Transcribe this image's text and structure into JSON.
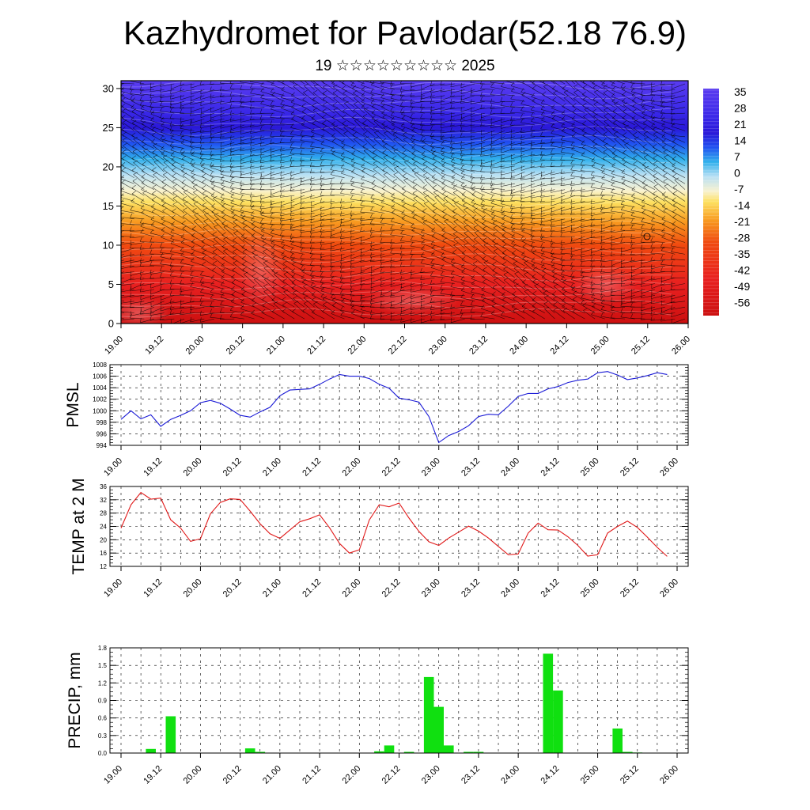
{
  "header": {
    "title": "Kazhydromet for Pavlodar(52.18 76.9)",
    "subtitle": "19 ☆☆☆☆☆☆☆☆☆ 2025"
  },
  "chart_data": [
    {
      "type": "heatmap",
      "name": "vertical-temperature-wind-section",
      "x_tick_labels": [
        "19.00",
        "19.12",
        "20.00",
        "20.12",
        "21.00",
        "21.12",
        "22.00",
        "22.12",
        "23.00",
        "23.12",
        "24.00",
        "24.12",
        "25.00",
        "25.12",
        "26.00"
      ],
      "y_ticks": [
        0,
        5,
        10,
        15,
        20,
        25,
        30
      ],
      "ylim": [
        0,
        31
      ],
      "colorbar_labels": [
        "35",
        "28",
        "21",
        "14",
        "7",
        "0",
        "-7",
        "-14",
        "-21",
        "-28",
        "-35",
        "-42",
        "-49",
        "-56"
      ],
      "colormap": {
        "stops": [
          {
            "level": 0,
            "color": "#cc1010"
          },
          {
            "level": 5,
            "color": "#e82020"
          },
          {
            "level": 10,
            "color": "#f04a10"
          },
          {
            "level": 13,
            "color": "#f89a20"
          },
          {
            "level": 15.5,
            "color": "#fde060"
          },
          {
            "level": 17,
            "color": "#f8f2d0"
          },
          {
            "level": 19,
            "color": "#b8e0f4"
          },
          {
            "level": 21,
            "color": "#30b0ec"
          },
          {
            "level": 23,
            "color": "#2050f0"
          },
          {
            "level": 25,
            "color": "#2a18d8"
          },
          {
            "level": 27,
            "color": "#3a28e8"
          },
          {
            "level": 31,
            "color": "#5a3cf0"
          }
        ]
      },
      "annotation_overlay": "wind barbs"
    },
    {
      "type": "line",
      "ylabel": "PMSL",
      "x_tick_labels": [
        "19.00",
        "19.12",
        "20.00",
        "20.12",
        "21.00",
        "21.12",
        "22.00",
        "22.12",
        "23.00",
        "23.12",
        "24.00",
        "24.12",
        "25.00",
        "25.12",
        "26.00"
      ],
      "y_ticks": [
        994,
        996,
        998,
        1000,
        1002,
        1004,
        1006,
        1008
      ],
      "ylim": [
        994,
        1008
      ],
      "x_range_hours": [
        0,
        168
      ],
      "line_color": "#1a1ad6",
      "grid": true,
      "series": [
        {
          "x": [
            0,
            3,
            6,
            9,
            12,
            15,
            18,
            21,
            24,
            27,
            30,
            33,
            36,
            39,
            42,
            45,
            48,
            51,
            54,
            57,
            60,
            63,
            66,
            69,
            72,
            75,
            78,
            81,
            84,
            87,
            90,
            93,
            96,
            99,
            102,
            105,
            108,
            111,
            114,
            117,
            120,
            123,
            126,
            129,
            132,
            135,
            138,
            141,
            144,
            147,
            150,
            153,
            156,
            159,
            162,
            165
          ],
          "values": [
            998.5,
            1000,
            998.6,
            999.3,
            997.3,
            998.5,
            999.2,
            1000,
            1001.4,
            1001.8,
            1001.3,
            1000.3,
            999.2,
            998.9,
            999.8,
            1000.6,
            1002.6,
            1003.6,
            1003.7,
            1003.8,
            1004.6,
            1005.5,
            1006.3,
            1006,
            1006,
            1005.6,
            1004.6,
            1003.9,
            1002.2,
            1001.9,
            1001.5,
            999,
            994.5,
            995.7,
            996.4,
            997.4,
            999,
            999.4,
            999.3,
            1000.8,
            1002.5,
            1003,
            1003,
            1003.8,
            1004.2,
            1004.9,
            1005.3,
            1005.5,
            1006.6,
            1006.8,
            1006.2,
            1005.4,
            1005.7,
            1006.1,
            1006.6,
            1006.3
          ]
        }
      ]
    },
    {
      "type": "line",
      "ylabel": "TEMP at 2 M",
      "x_tick_labels": [
        "19.00",
        "19.12",
        "20.00",
        "20.12",
        "21.00",
        "21.12",
        "22.00",
        "22.12",
        "23.00",
        "23.12",
        "24.00",
        "24.12",
        "25.00",
        "25.12",
        "26.00"
      ],
      "y_ticks": [
        12,
        16,
        20,
        24,
        28,
        32,
        36
      ],
      "ylim": [
        12,
        36
      ],
      "x_range_hours": [
        0,
        168
      ],
      "line_color": "#e01818",
      "grid": true,
      "series": [
        {
          "x": [
            0,
            3,
            6,
            9,
            12,
            15,
            18,
            21,
            24,
            27,
            30,
            33,
            36,
            39,
            42,
            45,
            48,
            51,
            54,
            57,
            60,
            63,
            66,
            69,
            72,
            75,
            78,
            81,
            84,
            87,
            90,
            93,
            96,
            99,
            102,
            105,
            108,
            111,
            114,
            117,
            120,
            123,
            126,
            129,
            132,
            135,
            138,
            141,
            144,
            147,
            150,
            153,
            156,
            159,
            162,
            165
          ],
          "values": [
            23.5,
            30.5,
            34.2,
            32.2,
            32.5,
            26,
            23.5,
            19.5,
            20.3,
            27.8,
            31.2,
            32.3,
            32.1,
            28.6,
            24.8,
            21.8,
            20.4,
            22.9,
            25.4,
            26.3,
            27.5,
            23.6,
            18.9,
            16,
            17,
            25.9,
            30.5,
            29.9,
            31,
            26.5,
            22.5,
            19.4,
            18.3,
            20.5,
            22.3,
            24.1,
            22.6,
            20.5,
            18,
            15.5,
            15.7,
            22,
            25,
            23,
            22.9,
            20.9,
            18.3,
            15.1,
            15.5,
            22,
            24,
            25.6,
            23.7,
            20.8,
            17.7,
            15
          ]
        }
      ]
    },
    {
      "type": "bar",
      "ylabel": "PRECIP, mm",
      "x_tick_labels": [
        "19.00",
        "19.12",
        "20.00",
        "20.12",
        "21.00",
        "21.12",
        "22.00",
        "22.12",
        "23.00",
        "23.12",
        "24.00",
        "24.12",
        "25.00",
        "25.12",
        "26.00"
      ],
      "y_ticks": [
        "0.0",
        "0.3",
        "0.6",
        "0.9",
        "1.2",
        "1.5",
        "1.8"
      ],
      "ylim": [
        0,
        1.8
      ],
      "x_range_hours": [
        0,
        168
      ],
      "bar_color": "#10e010",
      "grid": true,
      "bars": [
        {
          "x": 9,
          "value": 0.07
        },
        {
          "x": 15,
          "value": 0.63
        },
        {
          "x": 39,
          "value": 0.08
        },
        {
          "x": 42,
          "value": 0.02
        },
        {
          "x": 78,
          "value": 0.03
        },
        {
          "x": 81,
          "value": 0.13
        },
        {
          "x": 87,
          "value": 0.02
        },
        {
          "x": 93,
          "value": 1.3
        },
        {
          "x": 96,
          "value": 0.79
        },
        {
          "x": 99,
          "value": 0.13
        },
        {
          "x": 105,
          "value": 0.02
        },
        {
          "x": 108,
          "value": 0.02
        },
        {
          "x": 129,
          "value": 1.7
        },
        {
          "x": 132,
          "value": 1.07
        },
        {
          "x": 150,
          "value": 0.42
        },
        {
          "x": 153,
          "value": 0.02
        },
        {
          "x": 156,
          "value": 0.01
        }
      ]
    }
  ]
}
